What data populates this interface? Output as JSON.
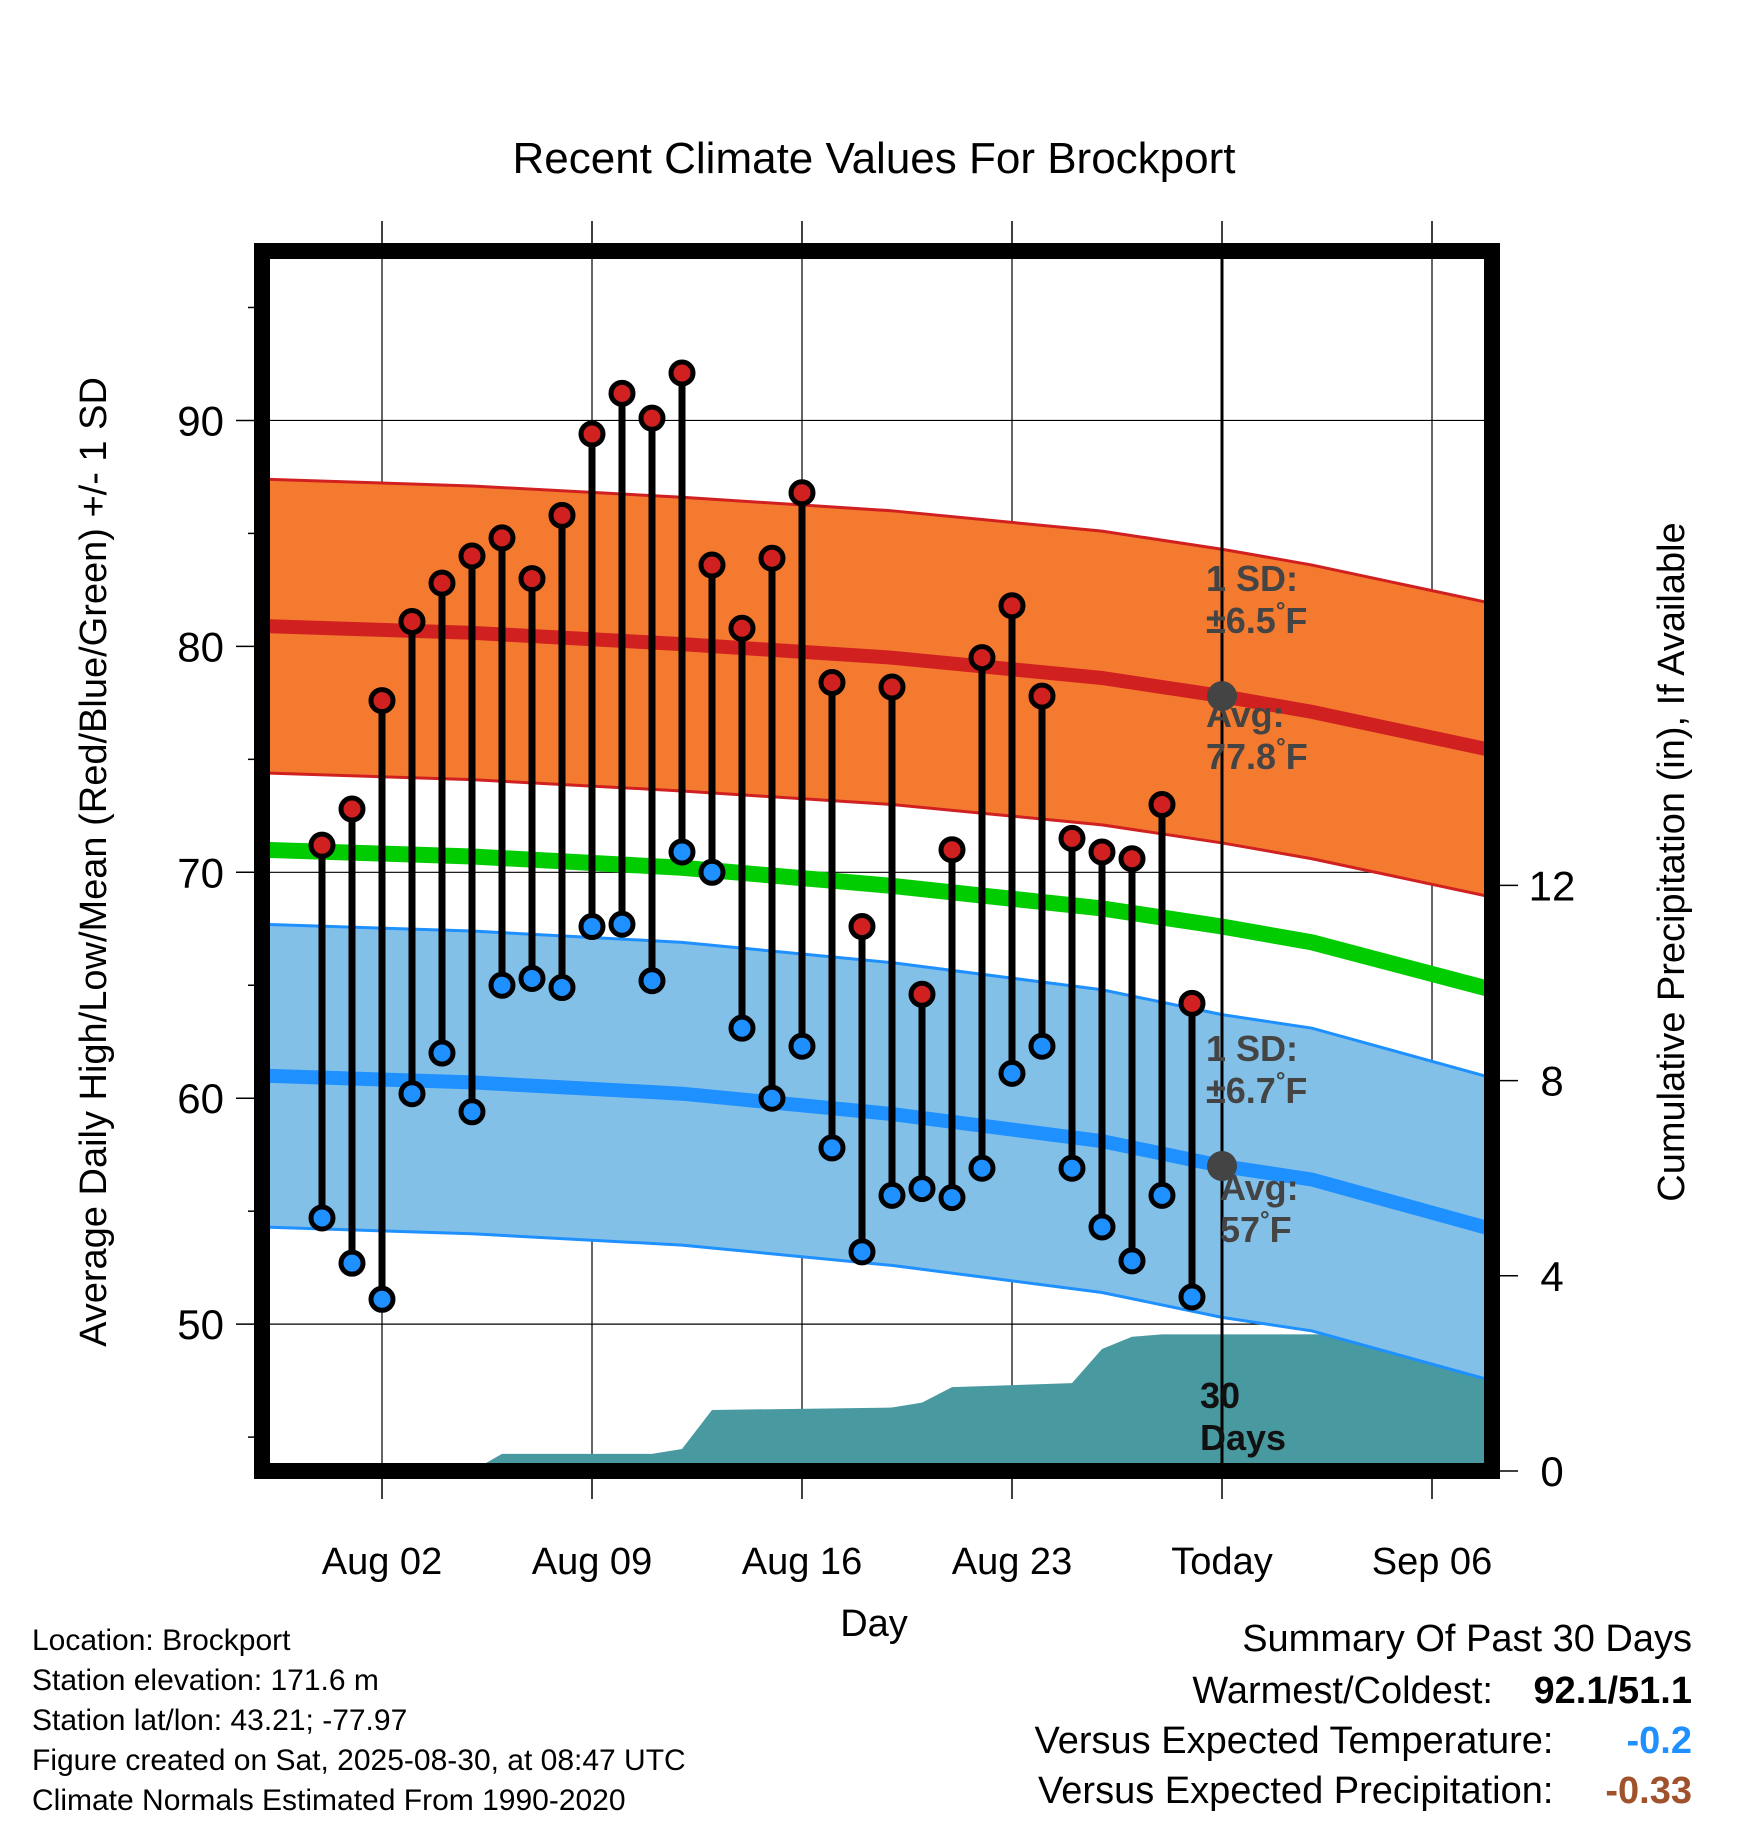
{
  "chart_data": {
    "type": "line",
    "title": "Recent Climate Values For Brockport",
    "xlabel": "Day",
    "ylabel": "Average Daily High/Low/Mean (Red/Blue/Green) +/- 1 SD",
    "y2label": "Cumulative Precipitation (in), If Available",
    "xlim": [
      "2025-07-29",
      "2025-09-08"
    ],
    "ylim": [
      43.5,
      97.5
    ],
    "y2lim": [
      0,
      25
    ],
    "grid": true,
    "x_ticks": [
      {
        "date": "2025-08-02",
        "label": "Aug 02"
      },
      {
        "date": "2025-08-09",
        "label": "Aug 09"
      },
      {
        "date": "2025-08-16",
        "label": "Aug 16"
      },
      {
        "date": "2025-08-23",
        "label": "Aug 23"
      },
      {
        "date": "2025-08-30",
        "label": "Today"
      },
      {
        "date": "2025-09-06",
        "label": "Sep 06"
      }
    ],
    "y_ticks": [
      50,
      60,
      70,
      80,
      90
    ],
    "y_minor_ticks": [
      45,
      55,
      65,
      75,
      85,
      95
    ],
    "y2_ticks": [
      0,
      4,
      8,
      12
    ],
    "today": "2025-08-30",
    "days_window_label": "30\nDays",
    "daily": {
      "dates": [
        "2025-07-31",
        "2025-08-01",
        "2025-08-02",
        "2025-08-03",
        "2025-08-04",
        "2025-08-05",
        "2025-08-06",
        "2025-08-07",
        "2025-08-08",
        "2025-08-09",
        "2025-08-10",
        "2025-08-11",
        "2025-08-12",
        "2025-08-13",
        "2025-08-14",
        "2025-08-15",
        "2025-08-16",
        "2025-08-17",
        "2025-08-18",
        "2025-08-19",
        "2025-08-20",
        "2025-08-21",
        "2025-08-22",
        "2025-08-23",
        "2025-08-24",
        "2025-08-25",
        "2025-08-26",
        "2025-08-27",
        "2025-08-28",
        "2025-08-29"
      ],
      "highs": [
        71.2,
        72.8,
        77.6,
        81.1,
        82.8,
        84.0,
        84.8,
        83.0,
        85.8,
        89.4,
        91.2,
        90.1,
        92.1,
        83.6,
        80.8,
        83.9,
        86.8,
        78.4,
        67.6,
        78.2,
        64.6,
        71.0,
        79.5,
        81.8,
        77.8,
        71.5,
        70.9,
        70.6,
        73.0,
        64.2
      ],
      "lows": [
        54.7,
        52.7,
        51.1,
        60.2,
        62.0,
        59.4,
        65.0,
        65.3,
        64.9,
        67.6,
        67.7,
        65.2,
        70.9,
        70.0,
        63.1,
        60.0,
        62.3,
        57.8,
        53.2,
        55.7,
        56.0,
        55.6,
        56.9,
        61.1,
        62.3,
        56.9,
        54.3,
        52.8,
        55.7,
        51.2
      ]
    },
    "normals": {
      "dates": [
        "2025-07-29",
        "2025-08-05",
        "2025-08-12",
        "2025-08-19",
        "2025-08-26",
        "2025-08-30",
        "2025-09-02",
        "2025-09-08"
      ],
      "avg_high": [
        80.9,
        80.6,
        80.1,
        79.5,
        78.6,
        77.8,
        77.1,
        75.4
      ],
      "avg_low": [
        61.0,
        60.7,
        60.2,
        59.3,
        58.1,
        57.0,
        56.4,
        54.2
      ],
      "avg_mean": [
        71.0,
        70.7,
        70.2,
        69.4,
        68.4,
        67.6,
        66.9,
        64.8
      ],
      "sd_high": 6.5,
      "sd_low": 6.7
    },
    "precip": {
      "dates": [
        "2025-08-04",
        "2025-08-05",
        "2025-08-06",
        "2025-08-10",
        "2025-08-11",
        "2025-08-12",
        "2025-08-13",
        "2025-08-19",
        "2025-08-20",
        "2025-08-21",
        "2025-08-25",
        "2025-08-26",
        "2025-08-27",
        "2025-08-28",
        "2025-08-30",
        "2025-09-08"
      ],
      "cumulative": [
        0,
        0,
        0.35,
        0.35,
        0.35,
        0.45,
        1.25,
        1.3,
        1.4,
        1.72,
        1.8,
        2.5,
        2.75,
        2.8,
        2.8,
        2.8
      ]
    },
    "annotations": {
      "high_sd": {
        "heading": "1 SD:",
        "value": "±6.5",
        "unit": "°F"
      },
      "high_avg": {
        "heading": "Avg:",
        "value": "77.8",
        "unit": "°F"
      },
      "low_sd": {
        "heading": "1 SD:",
        "value": "±6.7",
        "unit": "°F"
      },
      "low_avg": {
        "heading": "Avg:",
        "value": "57",
        "unit": "°F"
      }
    },
    "colors": {
      "high_band": "#f47a30",
      "high_line": "#d02020",
      "low_band": "#82c0e8",
      "low_line": "#1e90ff",
      "mean_line": "#00cc00",
      "precip": "#4899a0",
      "high_point": "#d02020",
      "low_point": "#1e90ff",
      "annotation_text": "#444444"
    }
  },
  "info": {
    "location": "Location: Brockport",
    "elevation": "Station elevation: 171.6 m",
    "latlon": "Station lat/lon: 43.21; -77.97",
    "created": "Figure created on Sat, 2025-08-30, at 08:47 UTC",
    "normals": "Climate Normals Estimated From 1990-2020"
  },
  "summary": {
    "title": "Summary Of Past 30 Days",
    "warm_cold_label": "Warmest/Coldest:",
    "warm_cold_value": "92.1/51.1",
    "temp_label": "Versus Expected Temperature:",
    "temp_value": "-0.2",
    "temp_color": "#1e90ff",
    "precip_label": "Versus Expected Precipitation:",
    "precip_value": "-0.33",
    "precip_color": "#a0522d"
  }
}
